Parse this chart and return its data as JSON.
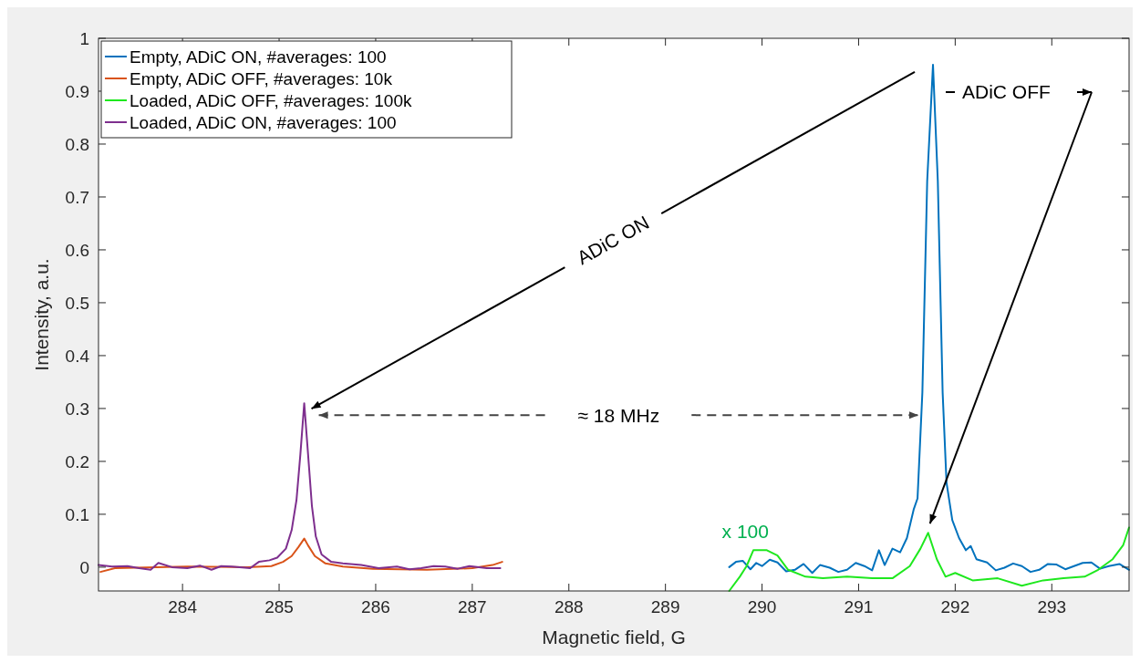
{
  "chart_data": {
    "type": "line",
    "xlabel": "Magnetic field, G",
    "ylabel": "Intensity, a.u.",
    "xlim": [
      283.13,
      293.8
    ],
    "ylim": [
      -0.045,
      1
    ],
    "xticks": [
      284,
      285,
      286,
      287,
      288,
      289,
      290,
      291,
      292,
      293
    ],
    "yticks": [
      0,
      0.1,
      0.2,
      0.3,
      0.4,
      0.5,
      0.6,
      0.7,
      0.8,
      0.9,
      1
    ],
    "legend": "top left",
    "grid": false,
    "line_style": "solid",
    "marker": "none",
    "annotations": [
      "ADiC ON",
      "ADiC OFF",
      "≈ 18 MHz",
      "x 100"
    ],
    "series": [
      {
        "name": "Empty, ADiC ON, #averages: 100",
        "color": "#0072bd",
        "x": [
          289.66,
          289.73,
          289.8,
          289.88,
          289.94,
          290.0,
          290.08,
          290.16,
          290.25,
          290.34,
          290.43,
          290.52,
          290.6,
          290.7,
          290.79,
          290.88,
          290.97,
          291.06,
          291.14,
          291.21,
          291.27,
          291.35,
          291.43,
          291.5,
          291.57,
          291.61,
          291.66,
          291.71,
          291.77,
          291.82,
          291.87,
          291.91,
          291.97,
          292.04,
          292.11,
          292.16,
          292.22,
          292.33,
          292.42,
          292.51,
          292.6,
          292.69,
          292.78,
          292.87,
          292.96,
          293.05,
          293.14,
          293.23,
          293.32,
          293.41,
          293.5,
          293.59,
          293.7,
          293.8
        ],
        "values": [
          0.0,
          0.01,
          0.012,
          -0.004,
          0.008,
          0.002,
          0.014,
          0.009,
          -0.008,
          -0.005,
          0.006,
          -0.011,
          0.004,
          -0.001,
          -0.009,
          -0.005,
          0.008,
          0.002,
          -0.006,
          0.032,
          0.004,
          0.035,
          0.028,
          0.055,
          0.109,
          0.13,
          0.33,
          0.73,
          0.95,
          0.73,
          0.33,
          0.16,
          0.089,
          0.055,
          0.032,
          0.04,
          0.015,
          0.009,
          -0.006,
          -0.001,
          0.007,
          0.002,
          -0.009,
          -0.005,
          0.006,
          0.005,
          -0.004,
          0.002,
          0.008,
          0.009,
          -0.003,
          0.002,
          0.006,
          -0.005
        ]
      },
      {
        "name": "Empty, ADiC OFF, #averages: 10k",
        "color": "#d95319",
        "x": [
          283.15,
          283.3,
          284.05,
          284.67,
          284.92,
          285.04,
          285.13,
          285.2,
          285.26,
          285.3,
          285.37,
          285.48,
          285.66,
          285.97,
          286.53,
          287.0,
          287.21,
          287.31
        ],
        "values": [
          -0.009,
          -0.002,
          0.001,
          0,
          0.002,
          0.01,
          0.021,
          0.038,
          0.054,
          0.041,
          0.021,
          0.007,
          0.001,
          -0.003,
          -0.005,
          -0.002,
          0.004,
          0.01
        ]
      },
      {
        "name": "Loaded, ADiC OFF, #averages: 100k",
        "color": "#1ee81e",
        "x": [
          289.66,
          289.77,
          289.84,
          289.91,
          290.05,
          290.16,
          290.27,
          290.45,
          290.63,
          290.88,
          291.14,
          291.35,
          291.53,
          291.64,
          291.72,
          291.81,
          291.9,
          292.0,
          292.18,
          292.44,
          292.69,
          292.91,
          293.12,
          293.34,
          293.48,
          293.63,
          293.74,
          293.8
        ],
        "values": [
          -0.045,
          -0.018,
          0.002,
          0.032,
          0.032,
          0.022,
          -0.005,
          -0.018,
          -0.021,
          -0.018,
          -0.021,
          -0.021,
          0.002,
          0.035,
          0.065,
          0.015,
          -0.018,
          -0.011,
          -0.025,
          -0.021,
          -0.035,
          -0.025,
          -0.021,
          -0.018,
          -0.005,
          0.015,
          0.042,
          0.075
        ]
      },
      {
        "name": "Loaded, ADiC ON, #averages: 100",
        "color": "#7e2f8e",
        "x": [
          283.13,
          283.27,
          283.43,
          283.55,
          283.67,
          283.75,
          283.89,
          284.05,
          284.18,
          284.3,
          284.4,
          284.51,
          284.7,
          284.79,
          284.9,
          284.98,
          285.07,
          285.13,
          285.18,
          285.22,
          285.26,
          285.3,
          285.34,
          285.38,
          285.44,
          285.54,
          285.66,
          285.85,
          286.03,
          286.22,
          286.35,
          286.47,
          286.6,
          286.72,
          286.85,
          286.97,
          287.15,
          287.29
        ],
        "values": [
          0.004,
          0.001,
          0.002,
          -0.002,
          -0.005,
          0.008,
          0,
          -0.002,
          0.003,
          -0.005,
          0.002,
          0.001,
          -0.002,
          0.01,
          0.013,
          0.018,
          0.035,
          0.07,
          0.127,
          0.213,
          0.31,
          0.213,
          0.115,
          0.058,
          0.024,
          0.01,
          0.007,
          0.004,
          -0.002,
          0.001,
          -0.004,
          -0.002,
          0.002,
          0.001,
          -0.003,
          0.002,
          -0.002,
          -0.002
        ]
      }
    ]
  }
}
